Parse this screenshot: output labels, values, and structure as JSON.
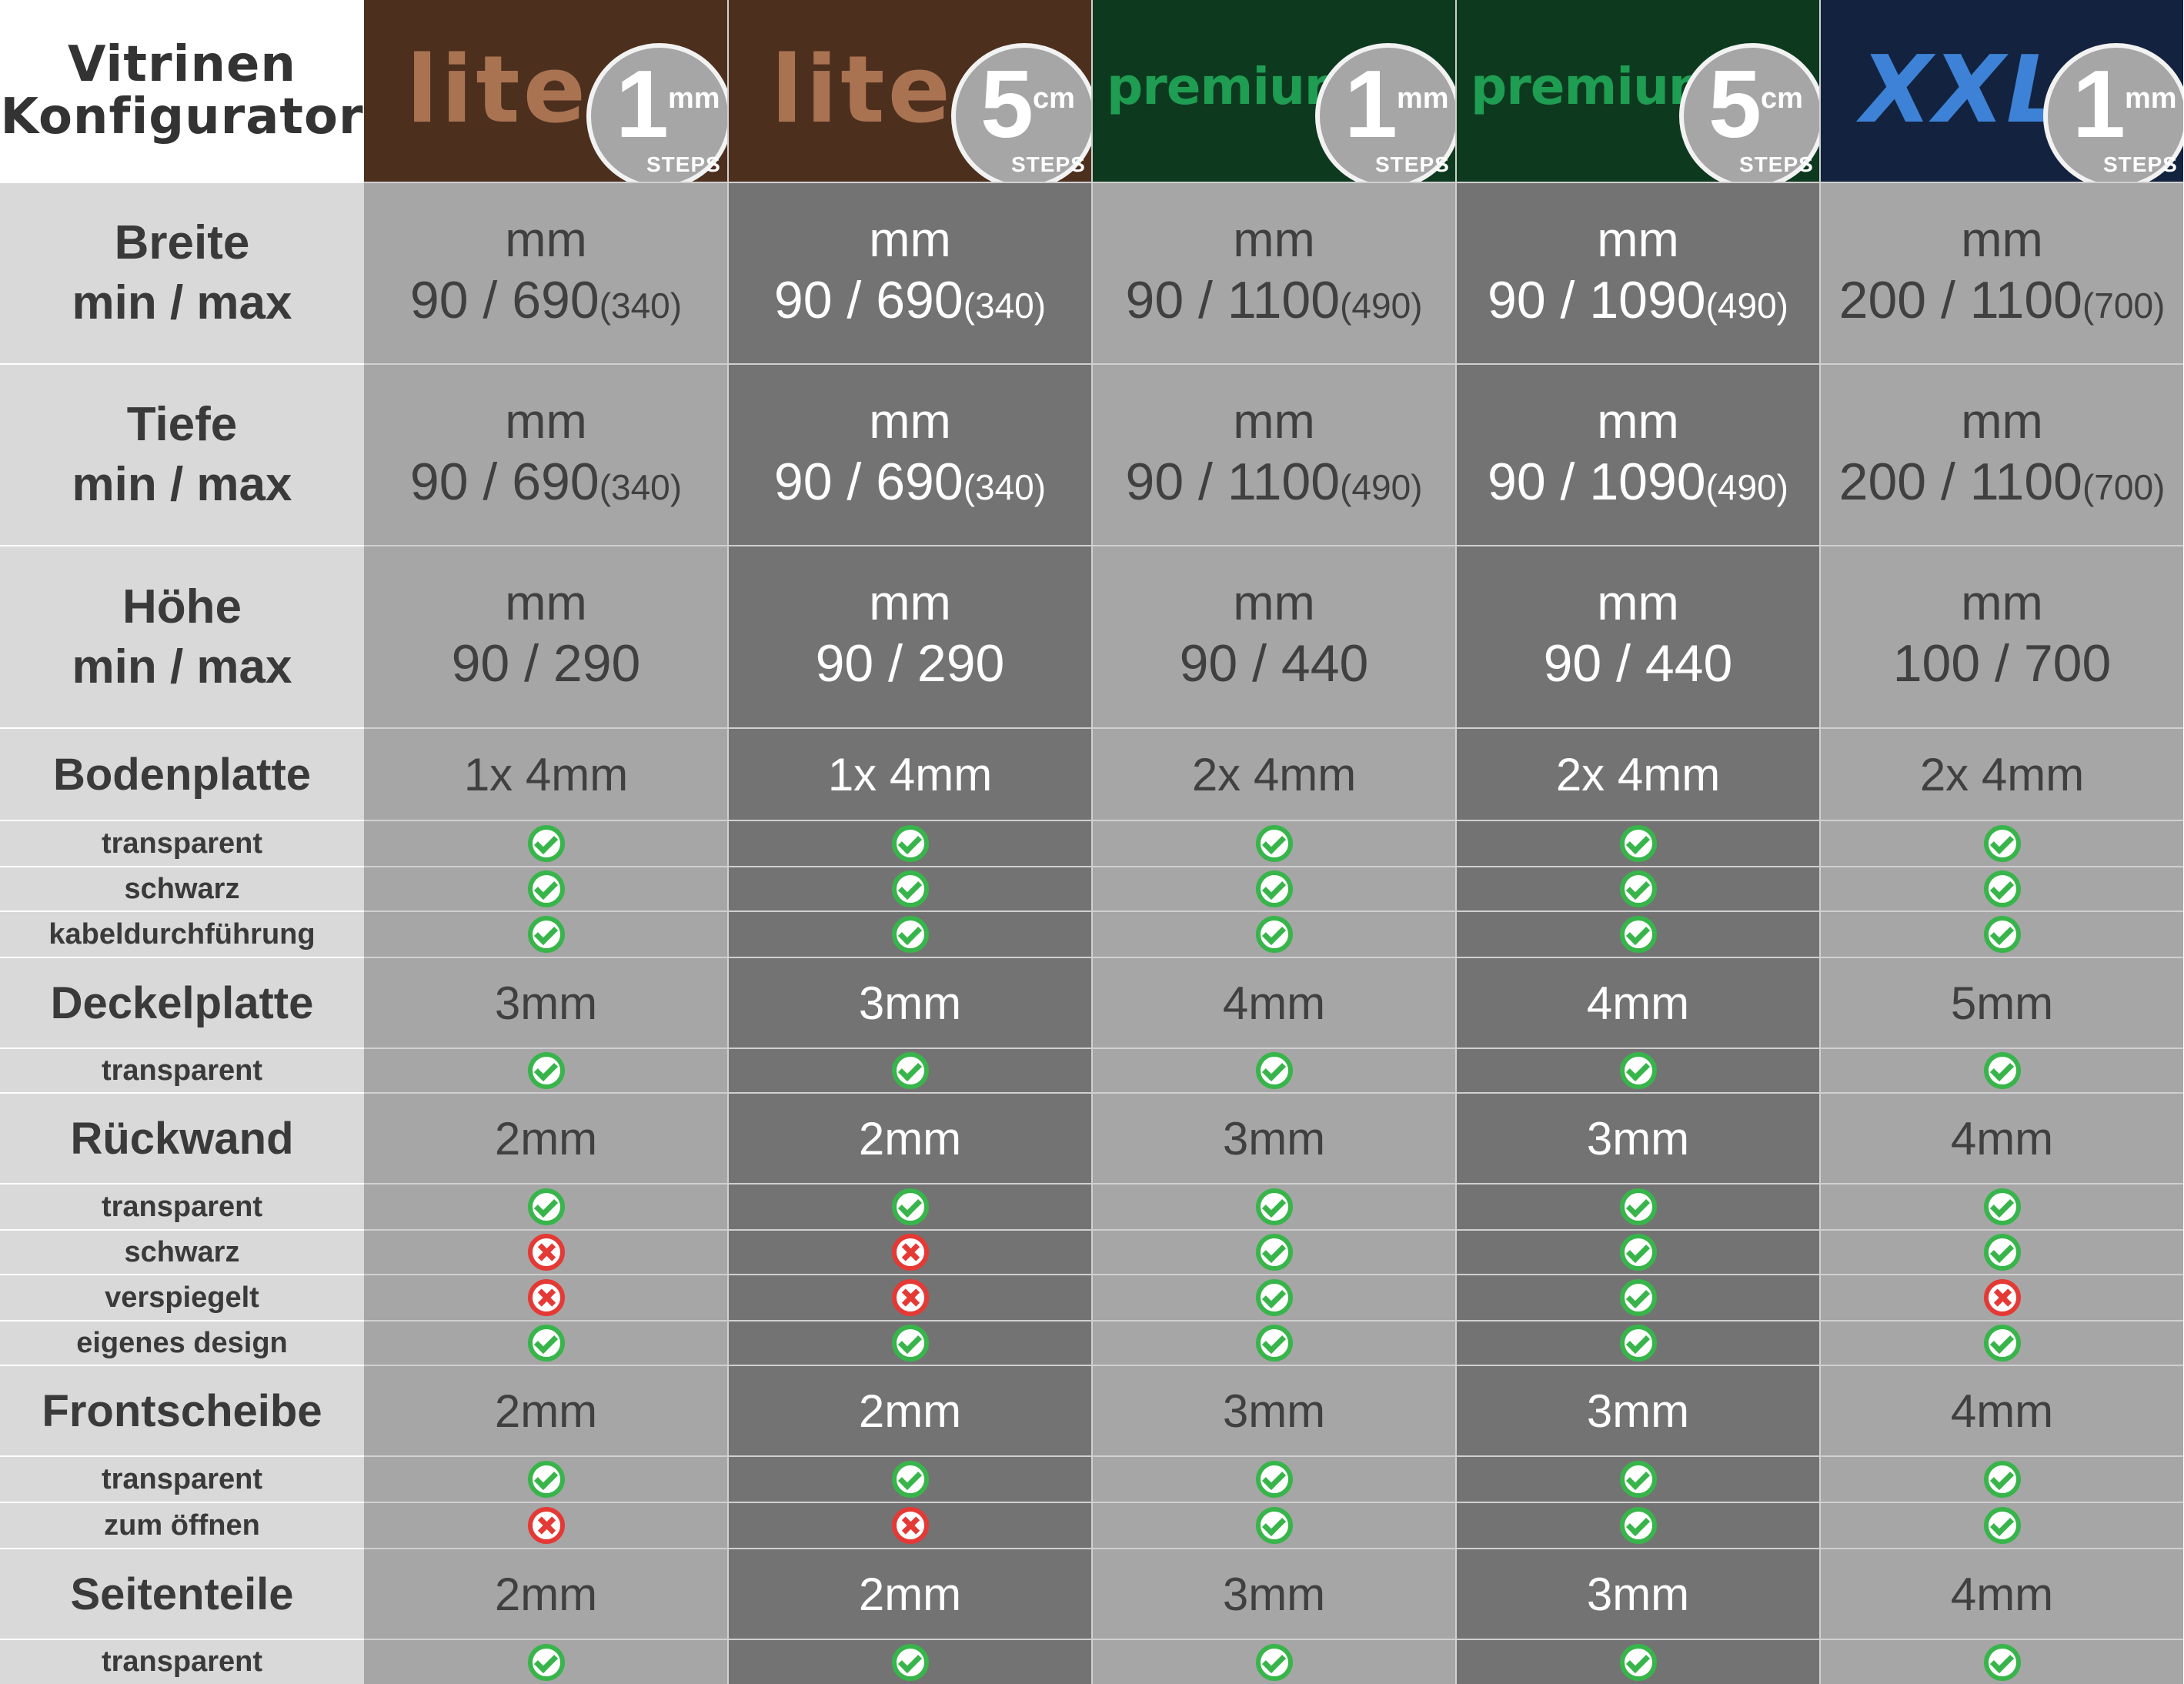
{
  "title": {
    "line1": "Vitrinen",
    "line2": "Konfigurator"
  },
  "colors": {
    "lite_bg": "#4d2f1e",
    "lite_text": "#a97352",
    "premium_bg": "#0d3a1f",
    "premium_text": "#1f9d52",
    "xxl_bg": "#13233f",
    "xxl_text": "#3d82d6",
    "cell_light": "#a6a6a6",
    "cell_dark": "#737373",
    "label_bg": "#d9d9d9",
    "ok_green": "#38b54a",
    "no_red": "#e53935"
  },
  "columns": [
    {
      "brand": "lite",
      "num": "1",
      "unit": "mm",
      "steps": "STEPS"
    },
    {
      "brand": "lite",
      "num": "5",
      "unit": "cm",
      "steps": "STEPS"
    },
    {
      "brand": "premium",
      "num": "1",
      "unit": "mm",
      "steps": "STEPS"
    },
    {
      "brand": "premium",
      "num": "5",
      "unit": "cm",
      "steps": "STEPS"
    },
    {
      "brand": "XXL",
      "num": "1",
      "unit": "mm",
      "steps": "STEPS"
    }
  ],
  "rows": [
    {
      "label": [
        "Breite",
        "min / max"
      ],
      "unit": "mm",
      "values": [
        {
          "v": "90 / 690",
          "extra": "(340)"
        },
        {
          "v": "90 / 690",
          "extra": "(340)"
        },
        {
          "v": "90 / 1100",
          "extra": "(490)"
        },
        {
          "v": "90 / 1090",
          "extra": "(490)"
        },
        {
          "v": "200 / 1100",
          "extra": "(700)"
        }
      ]
    },
    {
      "label": [
        "Tiefe",
        "min / max"
      ],
      "unit": "mm",
      "values": [
        {
          "v": "90 / 690",
          "extra": "(340)"
        },
        {
          "v": "90 / 690",
          "extra": "(340)"
        },
        {
          "v": "90 / 1100",
          "extra": "(490)"
        },
        {
          "v": "90 / 1090",
          "extra": "(490)"
        },
        {
          "v": "200 / 1100",
          "extra": "(700)"
        }
      ]
    },
    {
      "label": [
        "Höhe",
        "min / max"
      ],
      "unit": "mm",
      "values": [
        {
          "v": "90 / 290",
          "extra": ""
        },
        {
          "v": "90 / 290",
          "extra": ""
        },
        {
          "v": "90 / 440",
          "extra": ""
        },
        {
          "v": "90 / 440",
          "extra": ""
        },
        {
          "v": "100 / 700",
          "extra": ""
        }
      ]
    },
    {
      "label": [
        "Bodenplatte"
      ],
      "values": [
        "1x 4mm",
        "1x 4mm",
        "2x 4mm",
        "2x 4mm",
        "2x 4mm"
      ]
    },
    {
      "label": [
        "transparent"
      ],
      "marks": [
        "ok",
        "ok",
        "ok",
        "ok",
        "ok"
      ]
    },
    {
      "label": [
        "schwarz"
      ],
      "marks": [
        "ok",
        "ok",
        "ok",
        "ok",
        "ok"
      ]
    },
    {
      "label": [
        "kabeldurchführung"
      ],
      "marks": [
        "ok",
        "ok",
        "ok",
        "ok",
        "ok"
      ]
    },
    {
      "label": [
        "Deckelplatte"
      ],
      "values": [
        "3mm",
        "3mm",
        "4mm",
        "4mm",
        "5mm"
      ]
    },
    {
      "label": [
        "transparent"
      ],
      "marks": [
        "ok",
        "ok",
        "ok",
        "ok",
        "ok"
      ]
    },
    {
      "label": [
        "Rückwand"
      ],
      "values": [
        "2mm",
        "2mm",
        "3mm",
        "3mm",
        "4mm"
      ]
    },
    {
      "label": [
        "transparent"
      ],
      "marks": [
        "ok",
        "ok",
        "ok",
        "ok",
        "ok"
      ]
    },
    {
      "label": [
        "schwarz"
      ],
      "marks": [
        "no",
        "no",
        "ok",
        "ok",
        "ok"
      ]
    },
    {
      "label": [
        "verspiegelt"
      ],
      "marks": [
        "no",
        "no",
        "ok",
        "ok",
        "no"
      ]
    },
    {
      "label": [
        "eigenes design"
      ],
      "marks": [
        "ok",
        "ok",
        "ok",
        "ok",
        "ok"
      ]
    },
    {
      "label": [
        "Frontscheibe"
      ],
      "values": [
        "2mm",
        "2mm",
        "3mm",
        "3mm",
        "4mm"
      ]
    },
    {
      "label": [
        "transparent"
      ],
      "marks": [
        "ok",
        "ok",
        "ok",
        "ok",
        "ok"
      ]
    },
    {
      "label": [
        "zum öffnen"
      ],
      "marks": [
        "no",
        "no",
        "ok",
        "ok",
        "ok"
      ]
    },
    {
      "label": [
        "Seitenteile"
      ],
      "values": [
        "2mm",
        "2mm",
        "3mm",
        "3mm",
        "4mm"
      ]
    },
    {
      "label": [
        "transparent"
      ],
      "marks": [
        "ok",
        "ok",
        "ok",
        "ok",
        "ok"
      ]
    }
  ]
}
